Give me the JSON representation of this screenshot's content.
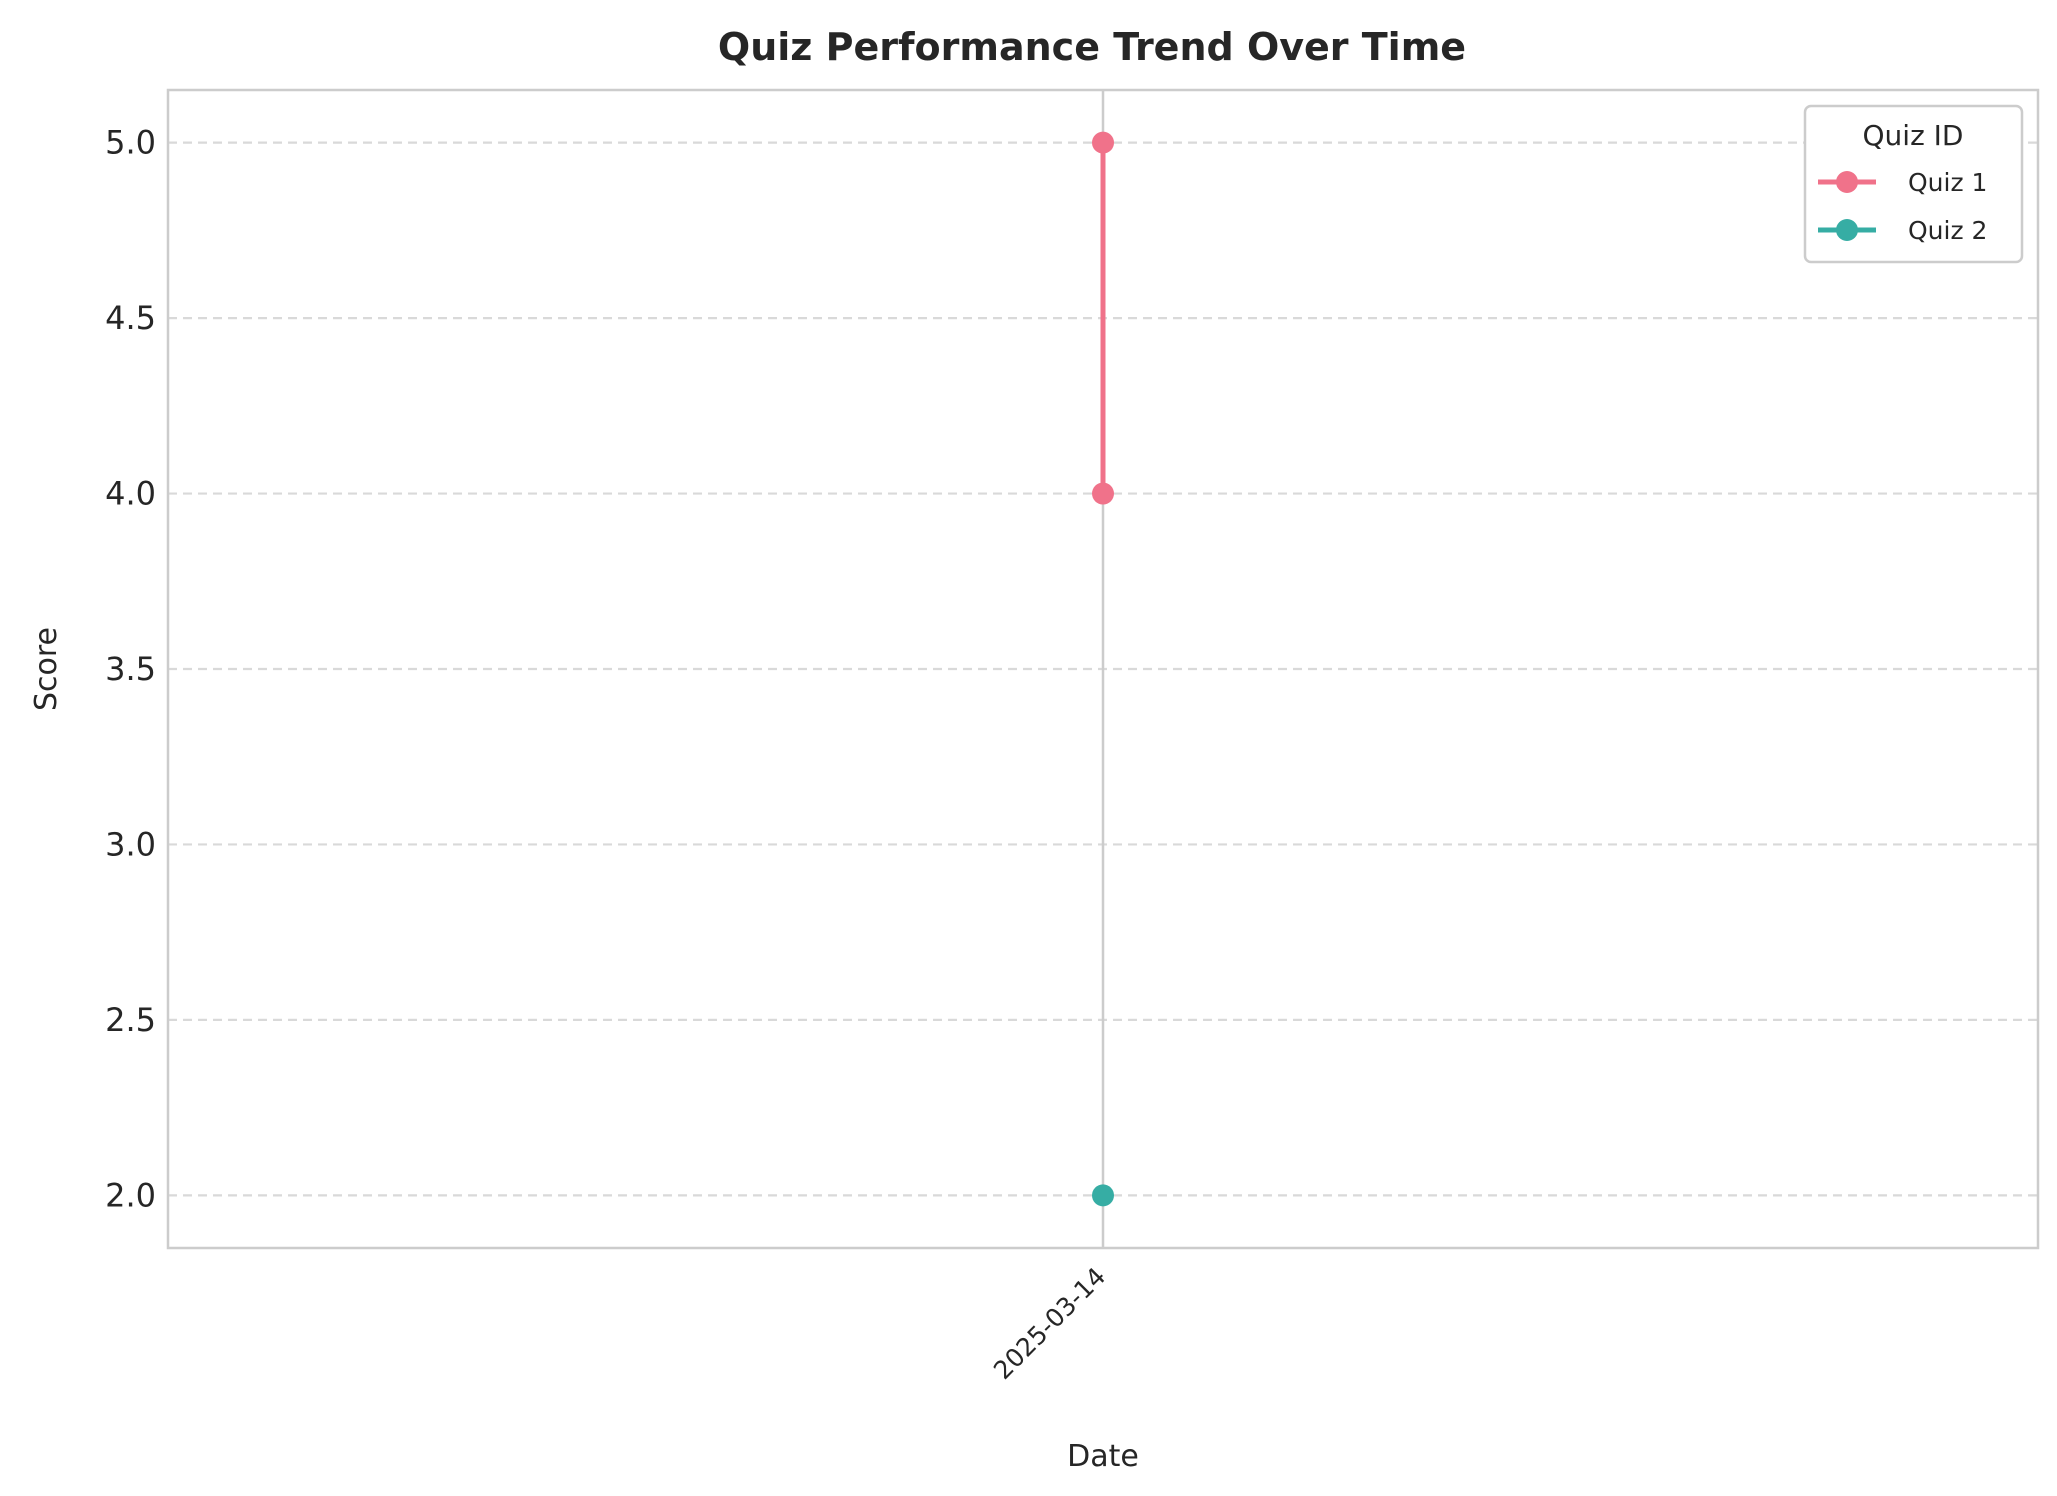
{
  "chart_data": {
    "type": "line",
    "title": "Quiz Performance Trend Over Time",
    "xlabel": "Date",
    "ylabel": "Score",
    "x_categories": [
      "2025-03-14"
    ],
    "ylim": [
      1.85,
      5.15
    ],
    "yticks": [
      "2.0",
      "2.5",
      "3.0",
      "3.5",
      "4.0",
      "4.5",
      "5.0"
    ],
    "grid": "horizontal-dashed",
    "legend": {
      "title": "Quiz ID",
      "placement": "top-right"
    },
    "series": [
      {
        "name": "Quiz 1",
        "color": "#f0728a",
        "points": [
          {
            "x": "2025-03-14",
            "y": 5.0
          },
          {
            "x": "2025-03-14",
            "y": 4.0
          }
        ]
      },
      {
        "name": "Quiz 2",
        "color": "#36ada4",
        "points": [
          {
            "x": "2025-03-14",
            "y": 2.0
          }
        ]
      }
    ]
  }
}
